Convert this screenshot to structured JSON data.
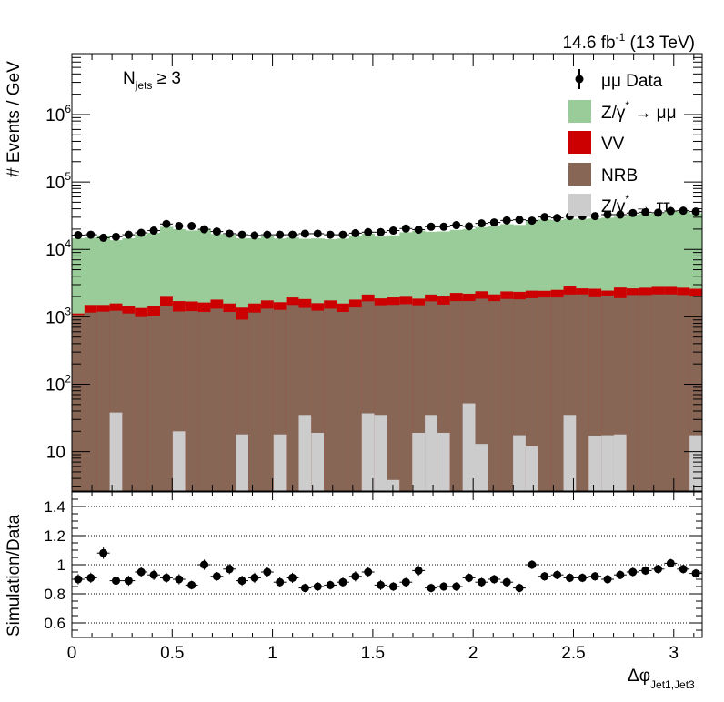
{
  "header": {
    "lumi": "14.6 fb",
    "lumi_sup": "-1",
    "energy": " (13 TeV)",
    "selection_main": "N",
    "selection_sub": "jets",
    "selection_rest": " ≥ 3"
  },
  "legend": {
    "data": "μμ Data",
    "dy_mumu_a": "Z/γ",
    "dy_mumu_sup": "*",
    "dy_mumu_b": " → μμ",
    "vv": "VV",
    "nrb": "NRB",
    "dy_tautau_a": "Z/γ",
    "dy_tautau_sup": "*",
    "dy_tautau_b": " → ττ"
  },
  "colors": {
    "dy_mumu": "#99cc99",
    "vv": "#cc0000",
    "nrb": "#876656",
    "dy_tautau": "#cccccc",
    "data": "#000000"
  },
  "chart_data": [
    {
      "type": "bar",
      "stacked": true,
      "yscale": "log",
      "title": "",
      "ylabel": "# Events / GeV",
      "xlabel": "Δφ Jet1,Jet3",
      "xlim": [
        0,
        3.1416
      ],
      "ylim": [
        2.6,
        8000000
      ],
      "n_bins": 50,
      "ytick_labels": [
        {
          "value": 10,
          "base": "10",
          "exp": ""
        },
        {
          "value": 100,
          "base": "10",
          "exp": "2"
        },
        {
          "value": 1000,
          "base": "10",
          "exp": "3"
        },
        {
          "value": 10000,
          "base": "10",
          "exp": "4"
        },
        {
          "value": 100000,
          "base": "10",
          "exp": "5"
        },
        {
          "value": 1000000,
          "base": "10",
          "exp": "6"
        }
      ],
      "legend_position": "top-right",
      "series": [
        {
          "name": "Z/γ* → ττ",
          "key": "dy_tautau",
          "values": [
            0,
            0,
            0,
            38,
            0,
            0,
            0,
            0,
            20,
            0,
            0,
            0,
            0,
            18,
            0,
            0,
            18,
            0,
            35,
            19,
            0,
            0,
            0,
            37,
            35,
            3.8,
            0,
            19,
            35,
            19,
            0,
            52,
            13,
            0,
            0,
            17.5,
            12,
            0,
            0,
            35,
            0,
            17,
            17.5,
            18,
            0,
            0,
            0,
            0,
            0,
            17.5
          ]
        },
        {
          "name": "NRB",
          "key": "nrb",
          "values": [
            1065,
            1157,
            1193,
            1193,
            1121,
            990,
            1020,
            1450,
            1180,
            1215,
            1180,
            1320,
            1180,
            890,
            1157,
            1320,
            1250,
            1500,
            1320,
            1215,
            1320,
            1180,
            1375,
            1660,
            1450,
            1500,
            1540,
            1465,
            1660,
            1500,
            1710,
            1660,
            1840,
            1710,
            1840,
            1800,
            1875,
            1935,
            1935,
            2105,
            2150,
            1935,
            2040,
            1875,
            2105,
            2105,
            2150,
            2150,
            2105,
            1980
          ]
        },
        {
          "name": "VV",
          "key": "vv",
          "values": [
            55,
            343,
            307,
            347,
            329,
            360,
            430,
            530,
            510,
            475,
            450,
            480,
            395,
            460,
            418,
            430,
            380,
            435,
            480,
            360,
            430,
            395,
            425,
            445,
            390,
            435,
            440,
            375,
            445,
            480,
            550,
            490,
            540,
            440,
            540,
            530,
            555,
            495,
            575,
            675,
            490,
            655,
            390,
            825,
            535,
            595,
            630,
            630,
            595,
            610
          ]
        },
        {
          "name": "Z/γ* → μμ",
          "key": "dy_mumu",
          "values": [
            13520,
            13515,
            14590,
            12128,
            13235,
            15370,
            16220,
            19678,
            18270,
            17402,
            18270,
            15128,
            15012,
            13317,
            13076,
            13925,
            12872,
            13080,
            12529,
            12941,
            12440,
            12945,
            14208,
            14958,
            13605,
            14211,
            15972,
            16957,
            16088,
            16446,
            17205,
            17818,
            18991,
            20440,
            21292,
            20752,
            24258,
            25354,
            24739,
            25577,
            25752,
            26097,
            27072,
            27786,
            30230,
            31476,
            31170,
            34691,
            33675,
            31608
          ]
        },
        {
          "name": "μμ Data",
          "key": "data",
          "type": "points",
          "values": [
            16270,
            16500,
            14900,
            15400,
            16500,
            17600,
            19000,
            23800,
            22200,
            22200,
            19900,
            18400,
            17100,
            16500,
            16100,
            16500,
            16500,
            16500,
            17100,
            17100,
            16500,
            16500,
            17400,
            18000,
            18000,
            19000,
            20400,
            19600,
            21700,
            21700,
            22900,
            22000,
            24300,
            25100,
            26900,
            27500,
            26700,
            30200,
            29300,
            31200,
            31200,
            31200,
            32800,
            32800,
            34600,
            35600,
            35000,
            37100,
            37500,
            36400
          ]
        }
      ]
    },
    {
      "type": "scatter",
      "title": "",
      "ylabel": "Simulation/Data",
      "xlabel": "Δφ Jet1,Jet3",
      "xlabel_main": "Δφ",
      "xlabel_sub": "Jet1,Jet3",
      "xlim": [
        0,
        3.1416
      ],
      "ylim": [
        0.5,
        1.5
      ],
      "grid": "horizontal dotted",
      "xtick_labels": [
        "0",
        "0.5",
        "1",
        "1.5",
        "2",
        "2.5",
        "3"
      ],
      "xtick_values": [
        0,
        0.5,
        1,
        1.5,
        2,
        2.5,
        3
      ],
      "ytick_labels": [
        "0.6",
        "0.8",
        "1",
        "1.2",
        "1.4"
      ],
      "ytick_values": [
        0.6,
        0.8,
        1.0,
        1.2,
        1.4
      ],
      "values": [
        0.9,
        0.91,
        1.08,
        0.89,
        0.89,
        0.95,
        0.93,
        0.91,
        0.9,
        0.86,
        1.0,
        0.92,
        0.97,
        0.89,
        0.91,
        0.95,
        0.88,
        0.91,
        0.84,
        0.85,
        0.86,
        0.88,
        0.92,
        0.95,
        0.86,
        0.85,
        0.88,
        0.96,
        0.84,
        0.85,
        0.85,
        0.91,
        0.88,
        0.9,
        0.88,
        0.84,
        1.0,
        0.92,
        0.93,
        0.91,
        0.91,
        0.92,
        0.9,
        0.93,
        0.95,
        0.96,
        0.97,
        1.01,
        0.97,
        0.94
      ],
      "errors": [
        0.035,
        0.035,
        0.04,
        0.035,
        0.035,
        0.035,
        0.035,
        0.035,
        0.035,
        0.03,
        0.035,
        0.03,
        0.035,
        0.035,
        0.035,
        0.035,
        0.035,
        0.035,
        0.03,
        0.03,
        0.03,
        0.035,
        0.035,
        0.035,
        0.035,
        0.03,
        0.03,
        0.035,
        0.03,
        0.03,
        0.03,
        0.03,
        0.03,
        0.03,
        0.03,
        0.03,
        0.03,
        0.03,
        0.03,
        0.03,
        0.03,
        0.03,
        0.03,
        0.03,
        0.03,
        0.03,
        0.03,
        0.03,
        0.03,
        0.03
      ]
    }
  ]
}
